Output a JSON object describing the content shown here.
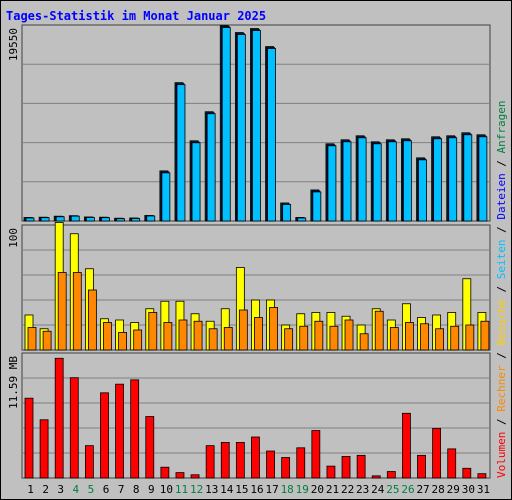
{
  "title": "Tages-Statistik im Monat Januar 2025",
  "legend": [
    {
      "text": "Volumen",
      "color": "#ff0000"
    },
    {
      "text": " / ",
      "color": "#000000"
    },
    {
      "text": "Rechner",
      "color": "#ff8800"
    },
    {
      "text": " / ",
      "color": "#000000"
    },
    {
      "text": "Besuche",
      "color": "#ffcc00"
    },
    {
      "text": " / ",
      "color": "#000000"
    },
    {
      "text": "Seiten",
      "color": "#00c0ff"
    },
    {
      "text": " / ",
      "color": "#000000"
    },
    {
      "text": "Dateien",
      "color": "#0000ff"
    },
    {
      "text": " / ",
      "color": "#000000"
    },
    {
      "text": "Anfragen",
      "color": "#008040"
    }
  ],
  "chart_data": [
    {
      "type": "bar",
      "panel": "top",
      "categories": [
        "1",
        "2",
        "3",
        "4",
        "5",
        "6",
        "7",
        "8",
        "9",
        "10",
        "11",
        "12",
        "13",
        "14",
        "15",
        "16",
        "17",
        "18",
        "19",
        "20",
        "21",
        "22",
        "23",
        "24",
        "25",
        "26",
        "27",
        "28",
        "29",
        "30",
        "31"
      ],
      "ylabel": "19550",
      "ylim": [
        0,
        19550
      ],
      "series": [
        {
          "name": "Anfragen",
          "color": "#008040",
          "values": [
            350,
            380,
            480,
            530,
            400,
            380,
            280,
            300,
            550,
            5000,
            13800,
            8000,
            10900,
            19500,
            18800,
            19200,
            17400,
            1800,
            350,
            3100,
            7700,
            8100,
            8500,
            7900,
            8100,
            8200,
            6300,
            8400,
            8500,
            8800,
            8600
          ]
        },
        {
          "name": "Dateien",
          "color": "#0000ff",
          "values": [
            330,
            360,
            460,
            510,
            380,
            360,
            260,
            280,
            530,
            4900,
            13700,
            7900,
            10800,
            19400,
            18700,
            19100,
            17300,
            1700,
            330,
            3000,
            7600,
            8000,
            8400,
            7800,
            8000,
            8100,
            6200,
            8300,
            8400,
            8700,
            8500
          ]
        },
        {
          "name": "Seiten",
          "color": "#00c0ff",
          "values": [
            300,
            330,
            420,
            480,
            350,
            330,
            230,
            250,
            500,
            4800,
            13600,
            7800,
            10700,
            19300,
            18600,
            19000,
            17200,
            1650,
            300,
            2900,
            7500,
            7900,
            8300,
            7700,
            7900,
            8000,
            6100,
            8200,
            8300,
            8600,
            8400
          ]
        }
      ]
    },
    {
      "type": "bar",
      "panel": "middle",
      "categories": [
        "1",
        "2",
        "3",
        "4",
        "5",
        "6",
        "7",
        "8",
        "9",
        "10",
        "11",
        "12",
        "13",
        "14",
        "15",
        "16",
        "17",
        "18",
        "19",
        "20",
        "21",
        "22",
        "23",
        "24",
        "25",
        "26",
        "27",
        "28",
        "29",
        "30",
        "31"
      ],
      "ylabel": "100",
      "ylim": [
        0,
        100
      ],
      "series": [
        {
          "name": "Besuche",
          "color": "#ffff00",
          "values": [
            28,
            17,
            102,
            93,
            65,
            25,
            24,
            22,
            33,
            39,
            39,
            29,
            23,
            33,
            66,
            40,
            40,
            20,
            29,
            30,
            30,
            27,
            20,
            33,
            24,
            37,
            26,
            28,
            30,
            57,
            30
          ]
        },
        {
          "name": "Rechner",
          "color": "#ff8800",
          "values": [
            18,
            15,
            62,
            62,
            48,
            22,
            14,
            16,
            30,
            22,
            24,
            23,
            17,
            18,
            32,
            26,
            34,
            17,
            19,
            23,
            19,
            24,
            13,
            31,
            18,
            22,
            21,
            17,
            19,
            20,
            23
          ]
        }
      ]
    },
    {
      "type": "bar",
      "panel": "bottom",
      "categories": [
        "1",
        "2",
        "3",
        "4",
        "5",
        "6",
        "7",
        "8",
        "9",
        "10",
        "11",
        "12",
        "13",
        "14",
        "15",
        "16",
        "17",
        "18",
        "19",
        "20",
        "21",
        "22",
        "23",
        "24",
        "25",
        "26",
        "27",
        "28",
        "29",
        "30",
        "31"
      ],
      "ylabel": "11.59 MB",
      "ylim": [
        0,
        11.59
      ],
      "series": [
        {
          "name": "Volumen",
          "color": "#ff0000",
          "values": [
            7.4,
            5.4,
            11.1,
            9.3,
            3.0,
            7.9,
            8.7,
            9.1,
            5.7,
            1.0,
            0.5,
            0.3,
            3.0,
            3.3,
            3.3,
            3.8,
            2.5,
            1.9,
            2.8,
            4.4,
            1.1,
            2.0,
            2.1,
            0.2,
            0.6,
            6.0,
            2.1,
            4.6,
            2.7,
            0.9,
            0.4
          ]
        }
      ]
    }
  ],
  "day_colors": {
    "weekday": "#000000",
    "weekend": "#008040",
    "weekend_days": [
      "4",
      "5",
      "11",
      "12",
      "18",
      "19",
      "25",
      "26"
    ]
  }
}
